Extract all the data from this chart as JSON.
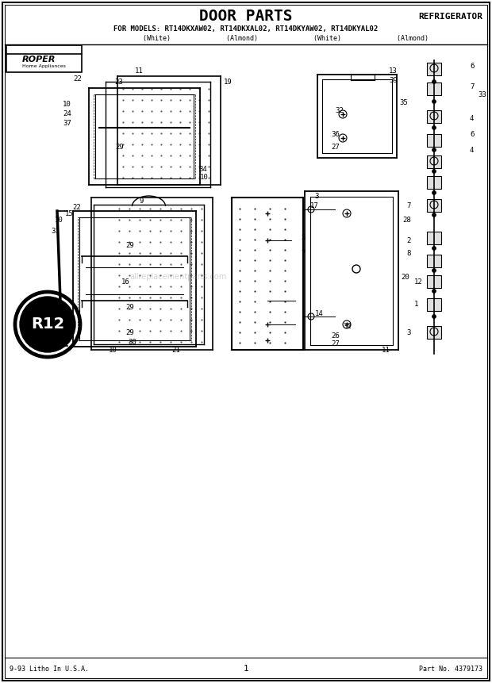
{
  "title": "DOOR PARTS",
  "subtitle": "FOR MODELS: RT14DKXAW02, RT14DKXAL02, RT14DKYAW02, RT14DKYAL02",
  "subtitle2": "                    (White)              (Almond)              (White)              (Almond)",
  "top_right_label": "REFRIGERATOR",
  "footer_left": "9-93 Litho In U.S.A.",
  "footer_center": "1",
  "footer_right": "Part No. 4379173",
  "bg_color": "#ffffff",
  "border_color": "#000000",
  "text_color": "#000000",
  "watermark": "allreplacementparts.com"
}
